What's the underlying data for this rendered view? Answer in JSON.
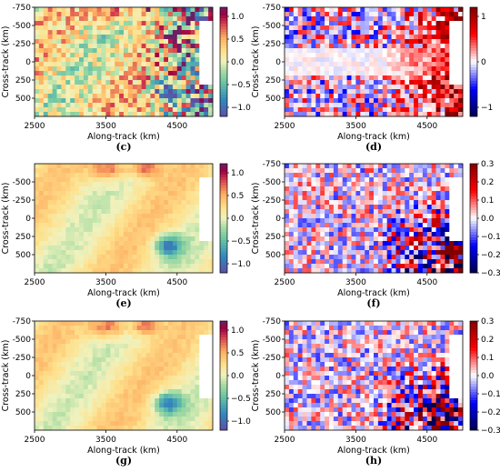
{
  "chart_data": [
    {
      "type": "heatmap",
      "label": "(c)",
      "xlabel": "Along-track (km)",
      "ylabel": "Cross-track (km)",
      "xticks": [
        "2500",
        "3500",
        "4500"
      ],
      "yticks": [
        "-750",
        "-500",
        "-250",
        "0",
        "250",
        "500"
      ],
      "xlim": [
        2500,
        5000
      ],
      "ylim": [
        -750,
        750
      ],
      "colorbar": {
        "ticks": [
          "1.0",
          "0.5",
          "0.0",
          "−0.5",
          "−1.0"
        ],
        "range": [
          -1.2,
          1.2
        ],
        "colormap": "spectral"
      },
      "texture": "noisy-spectral"
    },
    {
      "type": "heatmap",
      "label": "(d)",
      "xlabel": "Along-track (km)",
      "ylabel": "Cross-track (km)",
      "xticks": [
        "2500",
        "3500",
        "4500"
      ],
      "yticks": [
        "-750",
        "-500",
        "-250",
        "0",
        "250",
        "500"
      ],
      "xlim": [
        2500,
        5000
      ],
      "ylim": [
        -750,
        750
      ],
      "colorbar": {
        "ticks": [
          "1",
          "0",
          "−1"
        ],
        "range": [
          -1.2,
          1.2
        ],
        "colormap": "seismic"
      },
      "texture": "noisy-seismic"
    },
    {
      "type": "heatmap",
      "label": "(e)",
      "xlabel": "Along-track (km)",
      "ylabel": "Cross-track (km)",
      "xticks": [
        "2500",
        "3500",
        "4500"
      ],
      "yticks": [
        "-500",
        "-250",
        "0",
        "250",
        "500"
      ],
      "xlim": [
        2500,
        5000
      ],
      "ylim": [
        -750,
        750
      ],
      "colorbar": {
        "ticks": [
          "1.0",
          "0.5",
          "0.0",
          "−0.5",
          "−1.0"
        ],
        "range": [
          -1.2,
          1.2
        ],
        "colormap": "spectral"
      },
      "texture": "smooth-spectral"
    },
    {
      "type": "heatmap",
      "label": "(f)",
      "xlabel": "Along-track (km)",
      "ylabel": "Cross-track (km)",
      "xticks": [
        "2500",
        "3500",
        "4500"
      ],
      "yticks": [
        "-750",
        "-500",
        "-250",
        "0",
        "250",
        "500"
      ],
      "xlim": [
        2500,
        5000
      ],
      "ylim": [
        -750,
        750
      ],
      "colorbar": {
        "ticks": [
          "0.3",
          "0.2",
          "0.1",
          "0.0",
          "−0.1",
          "−0.2",
          "−0.3"
        ],
        "range": [
          -0.3,
          0.3
        ],
        "colormap": "seismic"
      },
      "texture": "residual-seismic"
    },
    {
      "type": "heatmap",
      "label": "(g)",
      "xlabel": "Along-track (km)",
      "ylabel": "Cross-track (km)",
      "xticks": [
        "2500",
        "3500",
        "4500"
      ],
      "yticks": [
        "-750",
        "-500",
        "-250",
        "0",
        "250",
        "500"
      ],
      "xlim": [
        2500,
        5000
      ],
      "ylim": [
        -750,
        750
      ],
      "colorbar": {
        "ticks": [
          "1.0",
          "0.5",
          "0.0",
          "−0.5",
          "−1.0"
        ],
        "range": [
          -1.2,
          1.2
        ],
        "colormap": "spectral"
      },
      "texture": "smooth-spectral"
    },
    {
      "type": "heatmap",
      "label": "(h)",
      "xlabel": "Along-track (km)",
      "ylabel": "Cross-track (km)",
      "xticks": [
        "2500",
        "3500",
        "4500"
      ],
      "yticks": [
        "-750",
        "-500",
        "-250",
        "0",
        "250",
        "500"
      ],
      "xlim": [
        2500,
        5000
      ],
      "ylim": [
        -750,
        750
      ],
      "colorbar": {
        "ticks": [
          "0.3",
          "0.2",
          "0.1",
          "0.0",
          "−0.1",
          "−0.2",
          "−0.3"
        ],
        "range": [
          -0.3,
          0.3
        ],
        "colormap": "seismic"
      },
      "texture": "residual-seismic"
    }
  ]
}
